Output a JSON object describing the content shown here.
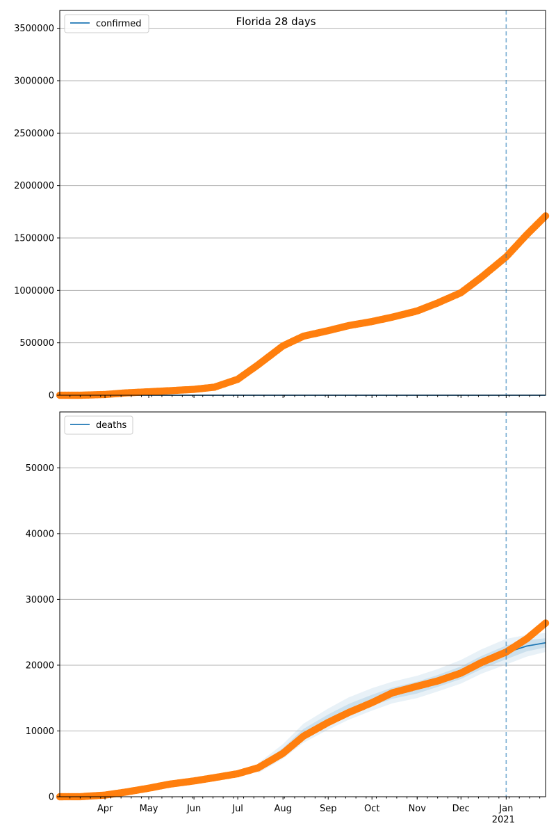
{
  "figure_title": "Florida 28 days",
  "colors": {
    "observed": "#ff7f0e",
    "model": "#1f77b4",
    "band": "#1f77b4",
    "grid": "#b0b0b0",
    "vline": "#1f77b4"
  },
  "chart_data": [
    {
      "type": "scatter",
      "title": "Florida 28 days",
      "legend": {
        "label": "confirmed",
        "placement": "top-left"
      },
      "xlabel": "",
      "ylabel": "",
      "x_range": [
        "2020-03-01",
        "2021-01-28"
      ],
      "ylim": [
        0,
        3670000
      ],
      "y_ticks": [
        0,
        500000,
        1000000,
        1500000,
        2000000,
        2500000,
        3000000,
        3500000
      ],
      "y_tick_labels": [
        "0",
        "500000",
        "1000000",
        "1500000",
        "2000000",
        "2500000",
        "3000000",
        "3500000"
      ],
      "grid": "horizontal",
      "forecast_start": "2021-01-01",
      "observed": {
        "name": "confirmed",
        "points": [
          [
            "2020-03-01",
            0
          ],
          [
            "2020-03-15",
            100
          ],
          [
            "2020-04-01",
            7000
          ],
          [
            "2020-04-15",
            22000
          ],
          [
            "2020-05-01",
            33000
          ],
          [
            "2020-05-15",
            43000
          ],
          [
            "2020-06-01",
            56000
          ],
          [
            "2020-06-15",
            77000
          ],
          [
            "2020-07-01",
            152000
          ],
          [
            "2020-07-15",
            291000
          ],
          [
            "2020-08-01",
            471000
          ],
          [
            "2020-08-15",
            563000
          ],
          [
            "2020-09-01",
            616000
          ],
          [
            "2020-09-15",
            664000
          ],
          [
            "2020-10-01",
            703000
          ],
          [
            "2020-10-15",
            745000
          ],
          [
            "2020-11-01",
            804000
          ],
          [
            "2020-11-15",
            880000
          ],
          [
            "2020-12-01",
            978000
          ],
          [
            "2020-12-15",
            1125000
          ],
          [
            "2021-01-01",
            1320000
          ],
          [
            "2021-01-15",
            1530000
          ],
          [
            "2021-01-28",
            1710000
          ]
        ]
      },
      "model": {
        "name": "confirmed",
        "points": [
          [
            "2020-03-01",
            0
          ],
          [
            "2021-01-28",
            0
          ]
        ]
      }
    },
    {
      "type": "scatter",
      "title": "",
      "legend": {
        "label": "deaths",
        "placement": "top-left"
      },
      "xlabel": "",
      "ylabel": "",
      "x_range": [
        "2020-03-01",
        "2021-01-28"
      ],
      "ylim": [
        0,
        58500
      ],
      "y_ticks": [
        0,
        10000,
        20000,
        30000,
        40000,
        50000
      ],
      "y_tick_labels": [
        "0",
        "10000",
        "20000",
        "30000",
        "40000",
        "50000"
      ],
      "x_ticks": [
        "2020-04-01",
        "2020-05-01",
        "2020-06-01",
        "2020-07-01",
        "2020-08-01",
        "2020-09-01",
        "2020-10-01",
        "2020-11-01",
        "2020-12-01",
        "2021-01-01"
      ],
      "x_tick_labels": [
        "Apr",
        "May",
        "Jun",
        "Jul",
        "Aug",
        "Sep",
        "Oct",
        "Nov",
        "Dec",
        "Jan"
      ],
      "x_year_label": "2021",
      "grid": "horizontal",
      "forecast_start": "2021-01-01",
      "observed": {
        "name": "deaths",
        "points": [
          [
            "2020-03-01",
            0
          ],
          [
            "2020-03-15",
            10
          ],
          [
            "2020-04-01",
            250
          ],
          [
            "2020-04-15",
            700
          ],
          [
            "2020-05-01",
            1300
          ],
          [
            "2020-05-15",
            1900
          ],
          [
            "2020-06-01",
            2400
          ],
          [
            "2020-06-15",
            2900
          ],
          [
            "2020-07-01",
            3500
          ],
          [
            "2020-07-15",
            4400
          ],
          [
            "2020-08-01",
            6600
          ],
          [
            "2020-08-15",
            9200
          ],
          [
            "2020-09-01",
            11300
          ],
          [
            "2020-09-15",
            12800
          ],
          [
            "2020-10-01",
            14300
          ],
          [
            "2020-10-15",
            15800
          ],
          [
            "2020-11-01",
            16800
          ],
          [
            "2020-11-15",
            17600
          ],
          [
            "2020-12-01",
            18800
          ],
          [
            "2020-12-15",
            20400
          ],
          [
            "2021-01-01",
            22000
          ],
          [
            "2021-01-15",
            24000
          ],
          [
            "2021-01-28",
            26400
          ]
        ]
      },
      "model": {
        "name": "deaths",
        "points": [
          [
            "2020-07-15",
            4300
          ],
          [
            "2020-08-01",
            6800
          ],
          [
            "2020-08-15",
            9500
          ],
          [
            "2020-09-01",
            11700
          ],
          [
            "2020-09-15",
            13200
          ],
          [
            "2020-10-01",
            14600
          ],
          [
            "2020-10-15",
            15700
          ],
          [
            "2020-11-01",
            16600
          ],
          [
            "2020-11-15",
            17600
          ],
          [
            "2020-12-01",
            18800
          ],
          [
            "2020-12-15",
            20400
          ],
          [
            "2021-01-01",
            21900
          ],
          [
            "2021-01-15",
            22900
          ],
          [
            "2021-01-28",
            23400
          ]
        ],
        "band_inner": [
          [
            "2020-07-15",
            3900,
            4700
          ],
          [
            "2020-08-01",
            6200,
            7400
          ],
          [
            "2020-08-15",
            8800,
            10300
          ],
          [
            "2020-09-01",
            10900,
            12500
          ],
          [
            "2020-09-15",
            12400,
            14100
          ],
          [
            "2020-10-01",
            13800,
            15500
          ],
          [
            "2020-10-15",
            14900,
            16600
          ],
          [
            "2020-11-01",
            15700,
            17500
          ],
          [
            "2020-11-15",
            16700,
            18500
          ],
          [
            "2020-12-01",
            17900,
            19800
          ],
          [
            "2020-12-15",
            19400,
            21400
          ],
          [
            "2021-01-01",
            20900,
            23000
          ],
          [
            "2021-01-15",
            22100,
            23800
          ],
          [
            "2021-01-28",
            22700,
            24100
          ]
        ],
        "band_outer": [
          [
            "2020-07-15",
            3600,
            5100
          ],
          [
            "2020-08-01",
            5800,
            8000
          ],
          [
            "2020-08-15",
            8200,
            11100
          ],
          [
            "2020-09-01",
            10200,
            13400
          ],
          [
            "2020-09-15",
            11700,
            15100
          ],
          [
            "2020-10-01",
            13100,
            16500
          ],
          [
            "2020-10-15",
            14200,
            17500
          ],
          [
            "2020-11-01",
            15000,
            18400
          ],
          [
            "2020-11-15",
            16000,
            19400
          ],
          [
            "2020-12-01",
            17200,
            20800
          ],
          [
            "2020-12-15",
            18700,
            22400
          ],
          [
            "2021-01-01",
            20100,
            24000
          ],
          [
            "2021-01-15",
            21300,
            24600
          ],
          [
            "2021-01-28",
            22000,
            24900
          ]
        ]
      }
    }
  ]
}
